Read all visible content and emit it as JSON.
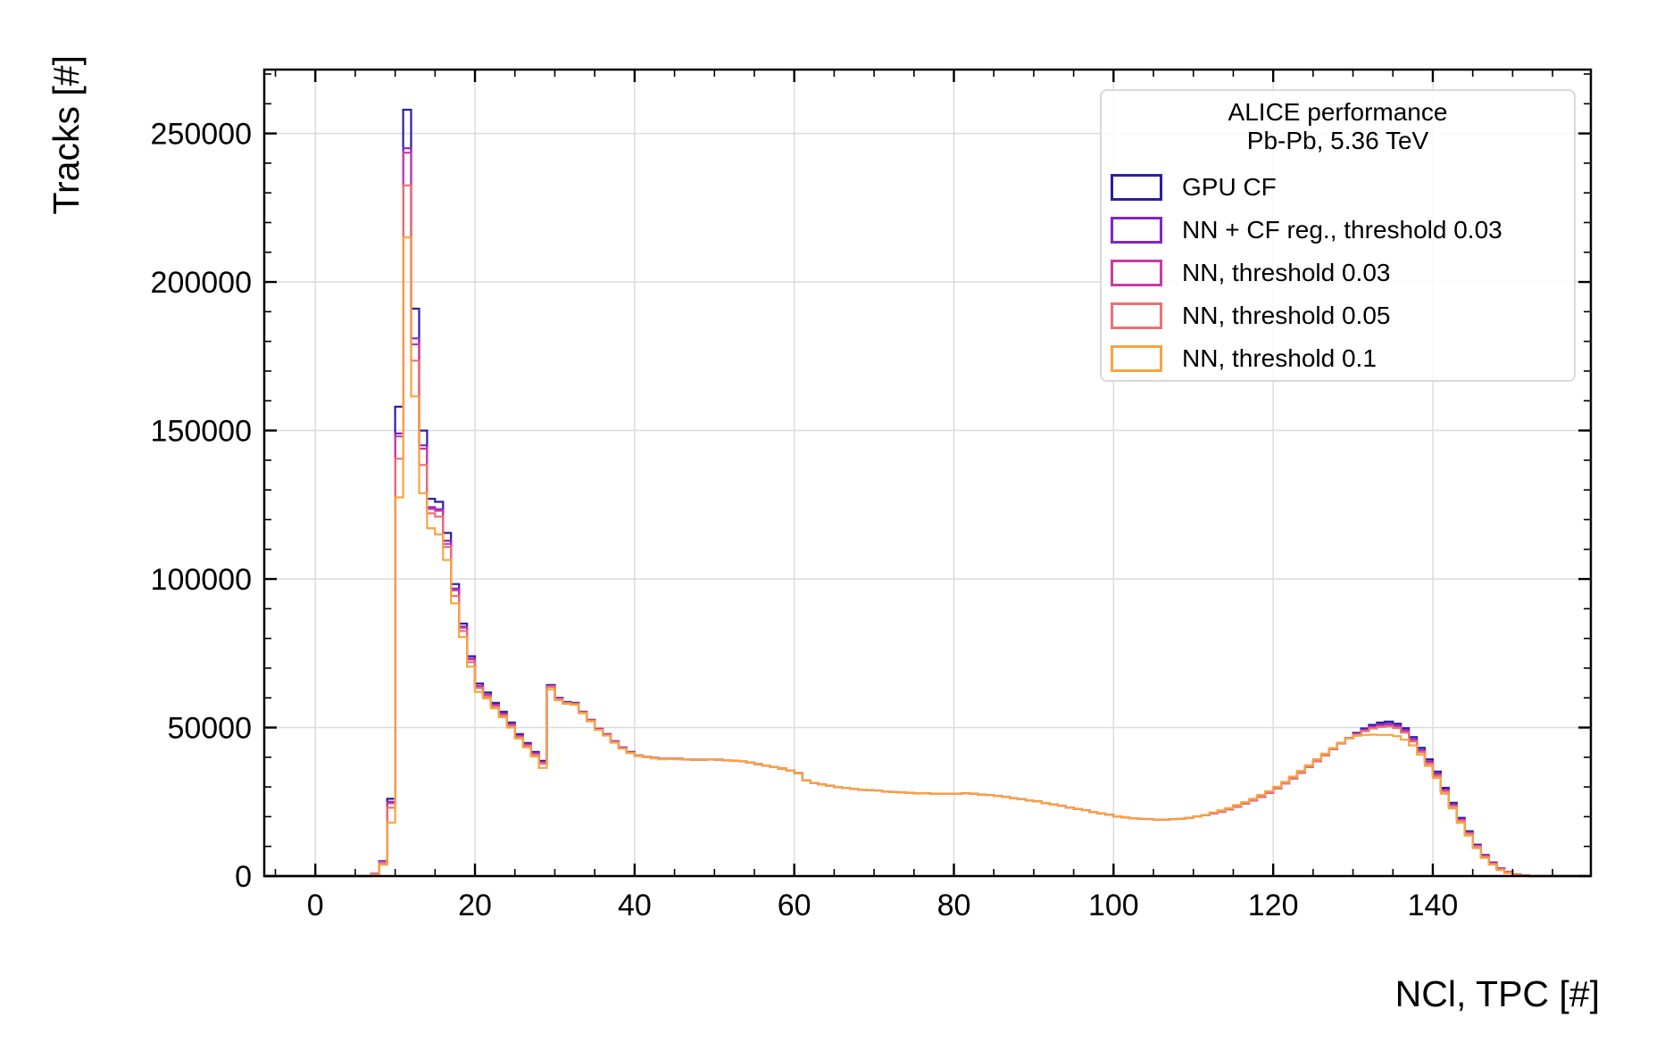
{
  "page": {
    "background": "#ffffff"
  },
  "chart_data": {
    "type": "step-histogram",
    "xlabel": "NCl, TPC [#]",
    "ylabel": "Tracks [#]",
    "xlim": [
      -6.4,
      159.8
    ],
    "ylim": [
      0,
      271500
    ],
    "grid": true,
    "x_major_ticks": [
      0,
      20,
      40,
      60,
      80,
      100,
      120,
      140,
      160
    ],
    "x_tick_labels": [
      "0",
      "20",
      "40",
      "60",
      "80",
      "100",
      "120",
      "140"
    ],
    "x_minor_step": 5,
    "y_major_ticks": [
      0,
      50000,
      100000,
      150000,
      200000,
      250000
    ],
    "y_tick_labels": [
      "0",
      "50000",
      "100000",
      "150000",
      "200000",
      "250000"
    ],
    "y_minor_step": 10000,
    "x_first_bin": 6,
    "bin_width": 1,
    "legend": {
      "position": "top-right",
      "title_lines": [
        "ALICE performance",
        "Pb-Pb, 5.36 TeV"
      ],
      "entries": [
        {
          "label": "GPU CF",
          "color": "#2a1fa2"
        },
        {
          "label": "NN + CF reg., threshold 0.03",
          "color": "#8125c8"
        },
        {
          "label": "NN, threshold 0.03",
          "color": "#c93ba3"
        },
        {
          "label": "NN, threshold 0.05",
          "color": "#ee7173"
        },
        {
          "label": "NN, threshold 0.1",
          "color": "#f9a43f"
        }
      ]
    },
    "series": [
      {
        "name": "GPU CF",
        "color": "#2a1fa2",
        "values": [
          0,
          800,
          5000,
          26000,
          158000,
          258000,
          191000,
          150000,
          127000,
          126000,
          115500,
          98300,
          85000,
          74000,
          64800,
          61800,
          58300,
          55300,
          51700,
          47800,
          44800,
          41800,
          38800,
          64300,
          60000,
          58600,
          58300,
          55300,
          52600,
          49600,
          47800,
          45400,
          43300,
          41800,
          40600,
          40200,
          39800,
          39500,
          39600,
          39500,
          39300,
          39200,
          39200,
          39300,
          39200,
          39000,
          38800,
          38700,
          38200,
          37700,
          37200,
          36700,
          36200,
          35500,
          34700,
          32200,
          31300,
          30800,
          30400,
          30000,
          29700,
          29400,
          29100,
          28900,
          28700,
          28500,
          28300,
          28100,
          28000,
          27900,
          27800,
          27700,
          27700,
          27700,
          27700,
          27800,
          27700,
          27400,
          27200,
          26900,
          26600,
          26200,
          25900,
          25500,
          25100,
          24600,
          24100,
          23600,
          23100,
          22600,
          22100,
          21600,
          21100,
          20600,
          20100,
          19800,
          19500,
          19300,
          19100,
          19000,
          19000,
          19100,
          19300,
          19600,
          20000,
          20500,
          21100,
          21700,
          22500,
          23400,
          24400,
          25500,
          26700,
          28000,
          29500,
          31100,
          32900,
          34800,
          36700,
          38700,
          40700,
          42700,
          44700,
          46500,
          48200,
          49700,
          50900,
          51700,
          52000,
          51300,
          49800,
          46800,
          43200,
          39300,
          35200,
          29700,
          24700,
          19600,
          15100,
          10600,
          7100,
          4600,
          2600,
          1400,
          600,
          200,
          0
        ]
      },
      {
        "name": "NN + CF reg., threshold 0.03",
        "color": "#8125c8",
        "values": [
          0,
          700,
          4800,
          25000,
          149000,
          245000,
          181000,
          145000,
          124200,
          123500,
          112900,
          96800,
          84000,
          73200,
          64000,
          61100,
          57700,
          54700,
          51200,
          47300,
          44400,
          41400,
          38400,
          64000,
          59800,
          58400,
          58100,
          55200,
          52500,
          49500,
          47700,
          45300,
          43200,
          41700,
          40600,
          40200,
          39800,
          39500,
          39600,
          39500,
          39300,
          39200,
          39200,
          39300,
          39200,
          39000,
          38800,
          38700,
          38200,
          37700,
          37200,
          36700,
          36200,
          35500,
          34700,
          32200,
          31300,
          30800,
          30400,
          30000,
          29700,
          29400,
          29100,
          28900,
          28700,
          28500,
          28300,
          28100,
          28000,
          27900,
          27800,
          27700,
          27700,
          27700,
          27700,
          27800,
          27700,
          27400,
          27200,
          26900,
          26600,
          26200,
          25900,
          25500,
          25100,
          24600,
          24100,
          23600,
          23100,
          22600,
          22100,
          21600,
          21100,
          20600,
          20100,
          19800,
          19500,
          19300,
          19100,
          19000,
          19000,
          19100,
          19300,
          19600,
          20000,
          20500,
          21100,
          21700,
          22500,
          23400,
          24400,
          25500,
          26700,
          28000,
          29500,
          31100,
          32900,
          34800,
          36700,
          38700,
          40700,
          42700,
          44700,
          46500,
          47900,
          49300,
          50400,
          51100,
          51300,
          50700,
          49200,
          46100,
          42500,
          38600,
          34500,
          29100,
          24100,
          19100,
          14700,
          10300,
          6900,
          4400,
          2500,
          1300,
          550,
          180,
          0
        ]
      },
      {
        "name": "NN, threshold 0.03",
        "color": "#c93ba3",
        "values": [
          0,
          700,
          4700,
          24500,
          148000,
          243500,
          179000,
          143900,
          123600,
          123000,
          111800,
          96200,
          83600,
          72900,
          63800,
          60900,
          57500,
          54500,
          51000,
          47100,
          44200,
          41200,
          38200,
          63900,
          59700,
          58300,
          58000,
          55100,
          52400,
          49400,
          47600,
          45200,
          43100,
          41600,
          40600,
          40200,
          39800,
          39500,
          39600,
          39500,
          39300,
          39200,
          39200,
          39300,
          39200,
          39000,
          38800,
          38700,
          38200,
          37700,
          37200,
          36700,
          36200,
          35500,
          34700,
          32200,
          31300,
          30800,
          30400,
          30000,
          29700,
          29400,
          29100,
          28900,
          28700,
          28500,
          28300,
          28100,
          28000,
          27900,
          27800,
          27700,
          27700,
          27700,
          27700,
          27800,
          27700,
          27400,
          27200,
          26900,
          26600,
          26200,
          25900,
          25500,
          25100,
          24600,
          24100,
          23600,
          23100,
          22600,
          22100,
          21600,
          21100,
          20600,
          20100,
          19800,
          19500,
          19300,
          19100,
          19000,
          19000,
          19100,
          19300,
          19600,
          20000,
          20500,
          21100,
          21700,
          22500,
          23400,
          24400,
          25500,
          26700,
          28000,
          29500,
          31100,
          32900,
          34800,
          36700,
          38700,
          40700,
          42700,
          44700,
          46500,
          47700,
          49000,
          50000,
          50600,
          50800,
          50200,
          48700,
          45700,
          42100,
          38200,
          34100,
          28800,
          23800,
          18900,
          14500,
          10100,
          6700,
          4300,
          2400,
          1250,
          520,
          170,
          0
        ]
      },
      {
        "name": "NN, threshold 0.05",
        "color": "#ee7173",
        "values": [
          0,
          600,
          4400,
          23000,
          140500,
          232500,
          173500,
          138400,
          122100,
          121000,
          110800,
          94300,
          82500,
          72000,
          63300,
          60400,
          57000,
          54000,
          50500,
          46700,
          43800,
          40800,
          37800,
          63700,
          59500,
          58200,
          57900,
          55000,
          52300,
          49300,
          47500,
          45100,
          43000,
          41500,
          40600,
          40200,
          39800,
          39500,
          39600,
          39500,
          39300,
          39200,
          39200,
          39300,
          39200,
          39000,
          38800,
          38700,
          38200,
          37700,
          37200,
          36700,
          36200,
          35500,
          34700,
          32200,
          31300,
          30800,
          30400,
          30000,
          29700,
          29400,
          29100,
          28900,
          28700,
          28500,
          28300,
          28100,
          28000,
          27900,
          27800,
          27700,
          27700,
          27700,
          27700,
          27800,
          27700,
          27400,
          27200,
          26900,
          26600,
          26200,
          25900,
          25500,
          25100,
          24600,
          24100,
          23600,
          23100,
          22600,
          22100,
          21600,
          21100,
          20600,
          20100,
          19800,
          19500,
          19300,
          19100,
          19000,
          19000,
          19100,
          19300,
          19600,
          20000,
          20500,
          21100,
          21700,
          22500,
          23400,
          24400,
          25500,
          26700,
          28000,
          29500,
          31100,
          32900,
          34800,
          36700,
          38700,
          40700,
          42700,
          44700,
          46500,
          47600,
          48800,
          49700,
          50200,
          50400,
          49800,
          48300,
          45300,
          41700,
          37800,
          33700,
          28400,
          23500,
          18600,
          14200,
          9900,
          6500,
          4100,
          2300,
          1200,
          500,
          160,
          0
        ]
      },
      {
        "name": "NN, threshold 0.1",
        "color": "#f9a43f",
        "values": [
          0,
          400,
          3800,
          18000,
          127500,
          215000,
          161500,
          128900,
          117100,
          115000,
          106400,
          91800,
          80500,
          70500,
          62000,
          59800,
          56500,
          53500,
          50000,
          46300,
          43300,
          40300,
          36400,
          62900,
          59200,
          58000,
          57700,
          54800,
          52100,
          49200,
          47300,
          44900,
          42900,
          41400,
          40400,
          40000,
          39600,
          39300,
          39400,
          39300,
          39300,
          39200,
          39200,
          39300,
          39200,
          39000,
          38800,
          38700,
          38200,
          37700,
          37200,
          36700,
          36200,
          35500,
          34700,
          32200,
          31300,
          30800,
          30400,
          30000,
          29700,
          29400,
          29100,
          28900,
          28700,
          28500,
          28300,
          28100,
          28000,
          27900,
          27800,
          27700,
          27700,
          27700,
          27700,
          27800,
          27700,
          27400,
          27200,
          26900,
          26600,
          26200,
          25900,
          25500,
          25100,
          24600,
          24100,
          23600,
          23100,
          22600,
          22100,
          21600,
          21100,
          20600,
          20100,
          19800,
          19500,
          19300,
          19100,
          19000,
          19000,
          19100,
          19300,
          19600,
          20000,
          20500,
          21400,
          22100,
          22900,
          23900,
          24900,
          26000,
          27300,
          28600,
          30100,
          31700,
          33500,
          35400,
          37300,
          39300,
          41200,
          43100,
          44900,
          46300,
          47200,
          47500,
          47600,
          47500,
          47500,
          47100,
          45900,
          44000,
          40900,
          37100,
          33000,
          27700,
          22800,
          17900,
          13600,
          9400,
          6100,
          3800,
          2000,
          1000,
          400,
          120,
          0
        ]
      }
    ]
  }
}
